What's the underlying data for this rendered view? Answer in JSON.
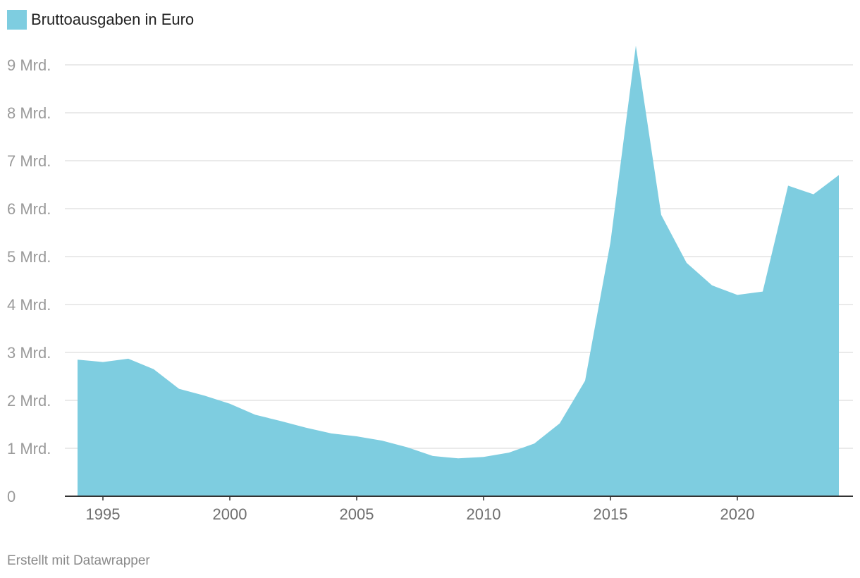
{
  "legend": {
    "label": "Bruttoausgaben in Euro",
    "color": "#7ecde0"
  },
  "credit": "Erstellt mit Datawrapper",
  "chart_data": {
    "type": "area",
    "series": [
      {
        "name": "Bruttoausgaben in Euro",
        "color": "#7ecde0",
        "x": [
          1994,
          1995,
          1996,
          1997,
          1998,
          1999,
          2000,
          2001,
          2002,
          2003,
          2004,
          2005,
          2006,
          2007,
          2008,
          2009,
          2010,
          2011,
          2012,
          2013,
          2014,
          2015,
          2016,
          2017,
          2018,
          2019,
          2020,
          2021,
          2022,
          2023,
          2024
        ],
        "values": [
          2.85,
          2.8,
          2.87,
          2.65,
          2.24,
          2.1,
          1.93,
          1.7,
          1.57,
          1.43,
          1.31,
          1.25,
          1.16,
          1.02,
          0.84,
          0.79,
          0.82,
          0.91,
          1.1,
          1.52,
          2.41,
          5.3,
          9.4,
          5.87,
          4.87,
          4.4,
          4.2,
          4.27,
          6.48,
          6.3,
          6.7
        ]
      }
    ],
    "xlim": [
      1993.5,
      2024.5
    ],
    "ylim": [
      0,
      9.5
    ],
    "yticks": [
      {
        "value": 0,
        "label": "0"
      },
      {
        "value": 1,
        "label": "1 Mrd."
      },
      {
        "value": 2,
        "label": "2 Mrd."
      },
      {
        "value": 3,
        "label": "3 Mrd."
      },
      {
        "value": 4,
        "label": "4 Mrd."
      },
      {
        "value": 5,
        "label": "5 Mrd."
      },
      {
        "value": 6,
        "label": "6 Mrd."
      },
      {
        "value": 7,
        "label": "7 Mrd."
      },
      {
        "value": 8,
        "label": "8 Mrd."
      },
      {
        "value": 9,
        "label": "9 Mrd."
      }
    ],
    "xticks": [
      {
        "value": 1995,
        "label": "1995"
      },
      {
        "value": 2000,
        "label": "2000"
      },
      {
        "value": 2005,
        "label": "2005"
      },
      {
        "value": 2010,
        "label": "2010"
      },
      {
        "value": 2015,
        "label": "2015"
      },
      {
        "value": 2020,
        "label": "2020"
      }
    ],
    "grid": true,
    "legend_position": "top-left"
  }
}
